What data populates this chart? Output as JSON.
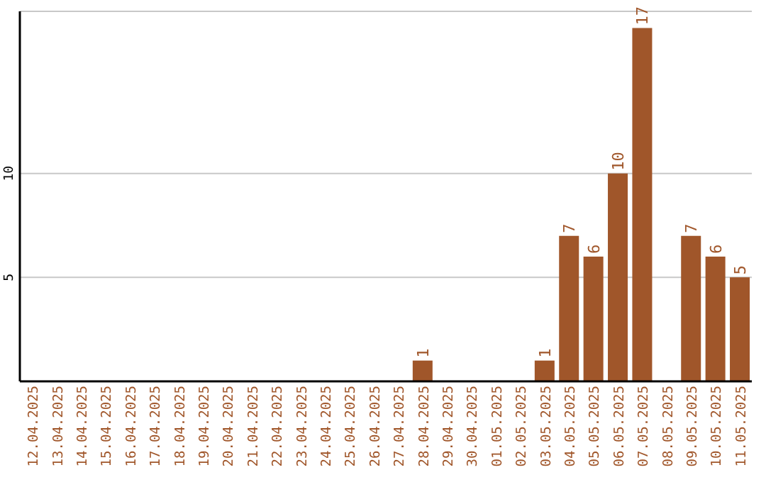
{
  "chart_data": {
    "type": "bar",
    "categories": [
      "12.04.2025",
      "13.04.2025",
      "14.04.2025",
      "15.04.2025",
      "16.04.2025",
      "17.04.2025",
      "18.04.2025",
      "19.04.2025",
      "20.04.2025",
      "21.04.2025",
      "22.04.2025",
      "23.04.2025",
      "24.04.2025",
      "25.04.2025",
      "26.04.2025",
      "27.04.2025",
      "28.04.2025",
      "29.04.2025",
      "30.04.2025",
      "01.05.2025",
      "02.05.2025",
      "03.05.2025",
      "04.05.2025",
      "05.05.2025",
      "06.05.2025",
      "07.05.2025",
      "08.05.2025",
      "09.05.2025",
      "10.05.2025",
      "11.05.2025"
    ],
    "values": [
      0,
      0,
      0,
      0,
      0,
      0,
      0,
      0,
      0,
      0,
      0,
      0,
      0,
      0,
      0,
      0,
      1,
      0,
      0,
      0,
      0,
      1,
      7,
      6,
      10,
      17,
      0,
      7,
      6,
      5
    ],
    "value_labels": [
      null,
      null,
      null,
      null,
      null,
      null,
      null,
      null,
      null,
      null,
      null,
      null,
      null,
      null,
      null,
      null,
      "1",
      null,
      null,
      null,
      null,
      "1",
      "7",
      "6",
      "10",
      "17",
      null,
      "7",
      "6",
      "5"
    ],
    "color": "#a0562a",
    "ylim": [
      0,
      17.8
    ],
    "yticks": [
      5,
      10
    ],
    "grid": "y"
  }
}
